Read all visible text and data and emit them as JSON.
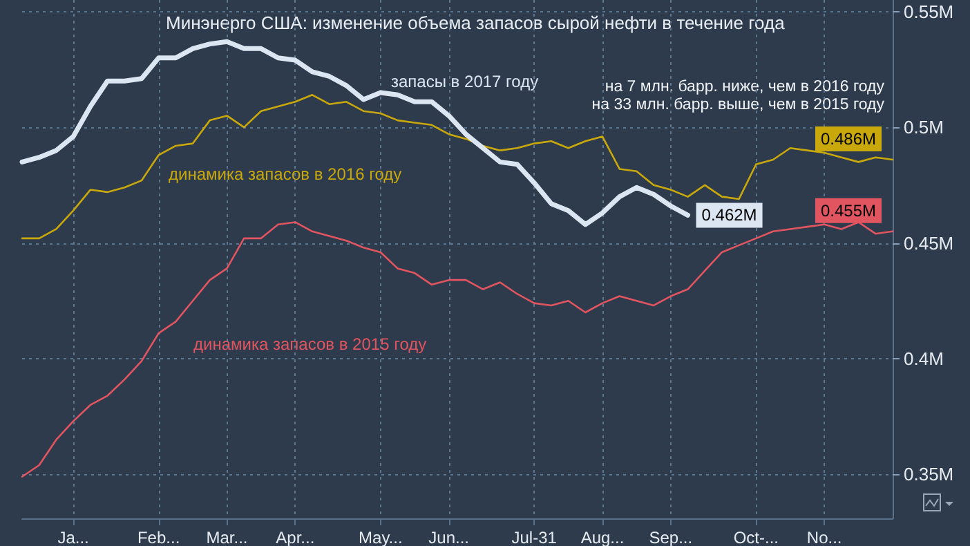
{
  "chart_data": {
    "type": "line",
    "title": "Минэнерго США: изменение объема запасов сырой нефти в течение года",
    "annotations": [
      "на 7 млн. барр. ниже, чем в 2016 году",
      "на 33 млн. барр. выше, чем в 2015 году"
    ],
    "categories": [
      null,
      null,
      null,
      "Ja...",
      null,
      null,
      null,
      null,
      "Feb...",
      null,
      null,
      null,
      "Mar...",
      null,
      null,
      null,
      "Apr...",
      null,
      null,
      null,
      null,
      "May...",
      null,
      null,
      null,
      "Jun...",
      null,
      null,
      null,
      null,
      "Jul-31",
      null,
      null,
      null,
      "Aug...",
      null,
      null,
      null,
      "Sep...",
      null,
      null,
      null,
      null,
      "Oct-...",
      null,
      null,
      null,
      "No...",
      null,
      null,
      null,
      null
    ],
    "ylim": [
      0.331,
      0.555
    ],
    "yticks": [
      {
        "value": 0.35,
        "label": "0.35M"
      },
      {
        "value": 0.4,
        "label": "0.4M"
      },
      {
        "value": 0.45,
        "label": "0.45M"
      },
      {
        "value": 0.5,
        "label": "0.5M"
      },
      {
        "value": 0.55,
        "label": "0.55M"
      }
    ],
    "grid": true,
    "marker": "none",
    "line_style": "solid",
    "series": [
      {
        "name": "запасы в 2017 году",
        "color": "#dce6f2",
        "values": [
          0.485,
          0.487,
          0.49,
          0.496,
          0.509,
          0.52,
          0.52,
          0.521,
          0.53,
          0.53,
          0.534,
          0.536,
          0.537,
          0.534,
          0.534,
          0.53,
          0.529,
          0.524,
          0.522,
          0.518,
          0.512,
          0.515,
          0.514,
          0.511,
          0.511,
          0.505,
          0.497,
          0.491,
          0.485,
          0.484,
          0.476,
          0.467,
          0.464,
          0.458,
          0.463,
          0.47,
          0.474,
          0.471,
          0.466,
          0.462,
          null,
          null,
          null,
          null,
          null,
          null,
          null,
          null,
          null,
          null,
          null,
          null
        ],
        "value_labels": [
          null,
          null,
          null,
          null,
          null,
          null,
          null,
          null,
          null,
          null,
          null,
          null,
          null,
          null,
          null,
          null,
          null,
          null,
          null,
          null,
          null,
          null,
          null,
          null,
          null,
          null,
          null,
          null,
          null,
          null,
          null,
          null,
          null,
          null,
          null,
          null,
          null,
          null,
          null,
          "0.462M",
          null,
          null,
          null,
          null,
          null,
          null,
          null,
          null,
          null,
          null,
          null,
          null
        ]
      },
      {
        "name": "динамика запасов в 2016 году",
        "color": "#c8a80a",
        "values": [
          0.452,
          0.452,
          0.456,
          0.464,
          0.473,
          0.472,
          0.474,
          0.477,
          0.488,
          0.492,
          0.493,
          0.503,
          0.505,
          0.5,
          0.507,
          0.509,
          0.511,
          0.514,
          0.51,
          0.511,
          0.507,
          0.506,
          0.503,
          0.502,
          0.501,
          0.497,
          0.495,
          0.492,
          0.49,
          0.491,
          0.493,
          0.494,
          0.491,
          0.494,
          0.496,
          0.482,
          0.481,
          0.475,
          0.473,
          0.47,
          0.475,
          0.47,
          0.469,
          0.484,
          0.486,
          0.491,
          0.49,
          0.489,
          0.487,
          0.485,
          0.487,
          0.486
        ],
        "value_labels": [
          null,
          null,
          null,
          null,
          null,
          null,
          null,
          null,
          null,
          null,
          null,
          null,
          null,
          null,
          null,
          null,
          null,
          null,
          null,
          null,
          null,
          null,
          null,
          null,
          null,
          null,
          null,
          null,
          null,
          null,
          null,
          null,
          null,
          null,
          null,
          null,
          null,
          null,
          null,
          null,
          null,
          null,
          null,
          null,
          null,
          null,
          null,
          null,
          null,
          null,
          null,
          "0.486M"
        ]
      },
      {
        "name": "динамика запасов в 2015 году",
        "color": "#e05560",
        "values": [
          0.349,
          0.354,
          0.365,
          0.373,
          0.38,
          0.384,
          0.391,
          0.399,
          0.411,
          0.416,
          0.425,
          0.434,
          0.439,
          0.452,
          0.452,
          0.458,
          0.459,
          0.455,
          0.453,
          0.451,
          0.448,
          0.446,
          0.439,
          0.437,
          0.432,
          0.434,
          0.434,
          0.43,
          0.433,
          0.428,
          0.424,
          0.423,
          0.425,
          0.42,
          0.424,
          0.427,
          0.425,
          0.423,
          0.427,
          0.43,
          0.438,
          0.446,
          0.449,
          0.452,
          0.455,
          0.456,
          0.457,
          0.458,
          0.456,
          0.459,
          0.454,
          0.455
        ],
        "value_labels": [
          null,
          null,
          null,
          null,
          null,
          null,
          null,
          null,
          null,
          null,
          null,
          null,
          null,
          null,
          null,
          null,
          null,
          null,
          null,
          null,
          null,
          null,
          null,
          null,
          null,
          null,
          null,
          null,
          null,
          null,
          null,
          null,
          null,
          null,
          null,
          null,
          null,
          null,
          null,
          null,
          null,
          null,
          null,
          null,
          null,
          null,
          null,
          null,
          null,
          null,
          null,
          "0.455M"
        ]
      }
    ]
  }
}
